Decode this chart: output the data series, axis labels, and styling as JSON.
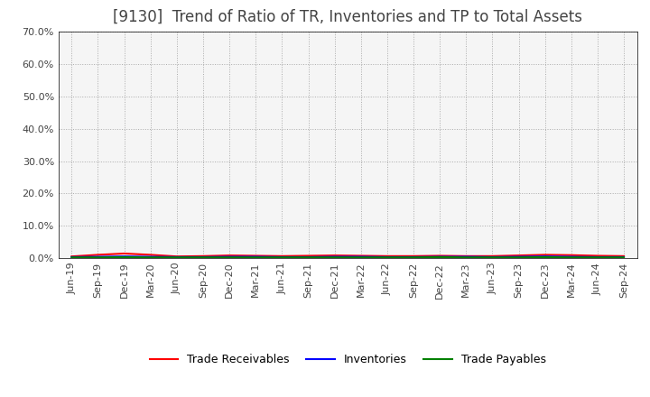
{
  "title": "[9130]  Trend of Ratio of TR, Inventories and TP to Total Assets",
  "title_fontsize": 12,
  "title_color": "#444444",
  "ylim": [
    0,
    0.7
  ],
  "yticks": [
    0.0,
    0.1,
    0.2,
    0.3,
    0.4,
    0.5,
    0.6,
    0.7
  ],
  "ytick_labels": [
    "0.0%",
    "10.0%",
    "20.0%",
    "30.0%",
    "40.0%",
    "50.0%",
    "60.0%",
    "70.0%"
  ],
  "dates": [
    "Jun-19",
    "Sep-19",
    "Dec-19",
    "Mar-20",
    "Jun-20",
    "Sep-20",
    "Dec-20",
    "Mar-21",
    "Jun-21",
    "Sep-21",
    "Dec-21",
    "Mar-22",
    "Jun-22",
    "Sep-22",
    "Dec-22",
    "Mar-23",
    "Jun-23",
    "Sep-23",
    "Dec-23",
    "Mar-24",
    "Jun-24",
    "Sep-24"
  ],
  "trade_receivables": [
    0.005,
    0.01,
    0.014,
    0.01,
    0.005,
    0.006,
    0.008,
    0.007,
    0.006,
    0.007,
    0.008,
    0.007,
    0.006,
    0.006,
    0.007,
    0.006,
    0.006,
    0.008,
    0.01,
    0.009,
    0.007,
    0.006
  ],
  "inventories": [
    0.003,
    0.004,
    0.005,
    0.004,
    0.003,
    0.003,
    0.004,
    0.004,
    0.003,
    0.003,
    0.004,
    0.004,
    0.003,
    0.003,
    0.004,
    0.004,
    0.003,
    0.004,
    0.005,
    0.004,
    0.003,
    0.003
  ],
  "trade_payables": [
    0.002,
    0.002,
    0.003,
    0.002,
    0.002,
    0.002,
    0.002,
    0.002,
    0.002,
    0.002,
    0.002,
    0.002,
    0.002,
    0.002,
    0.003,
    0.002,
    0.002,
    0.002,
    0.003,
    0.002,
    0.002,
    0.002
  ],
  "tr_color": "#ff0000",
  "inv_color": "#0000ff",
  "tp_color": "#008000",
  "legend_labels": [
    "Trade Receivables",
    "Inventories",
    "Trade Payables"
  ],
  "grid_color": "#aaaaaa",
  "bg_color": "#ffffff",
  "plot_bg_color": "#f5f5f5",
  "line_width": 1.5,
  "tick_fontsize": 8,
  "legend_fontsize": 9
}
